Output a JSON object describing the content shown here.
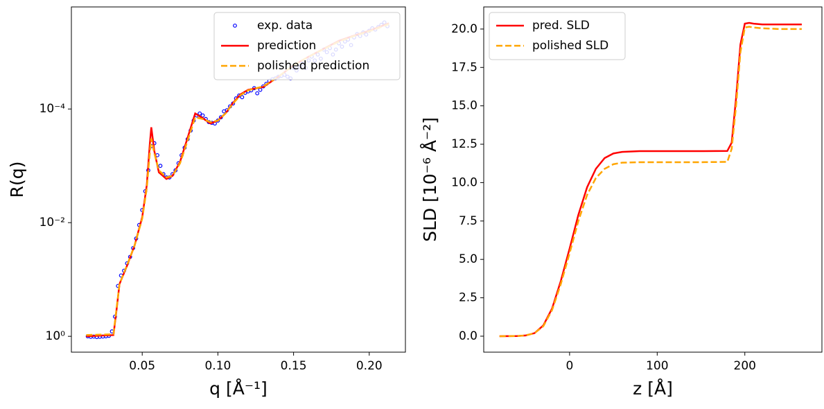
{
  "chart_data": [
    {
      "type": "line",
      "ylog": true,
      "legend": "upper right",
      "ylabel": "R(q)",
      "xlabel": "q [Å⁻¹]",
      "xlim": [
        0.0032,
        0.2239
      ],
      "ylim": [
        1.9,
        1.6e-06
      ],
      "xticks": [
        0.05,
        {
          "value": 0.1,
          "label": "0.10"
        },
        0.15,
        {
          "value": 0.2,
          "label": "0.20"
        }
      ],
      "yticks": [
        {
          "value": 1,
          "label": "10⁰"
        },
        {
          "value": 0.01,
          "label": "10⁻²"
        },
        {
          "value": 0.0001,
          "label": "10⁻⁴"
        }
      ],
      "series": [
        {
          "name": "exp. data",
          "type": "scatter",
          "color": "#0000ff",
          "x": [
            0.014,
            0.016,
            0.018,
            0.02,
            0.022,
            0.024,
            0.026,
            0.028,
            0.03,
            0.032,
            0.034,
            0.036,
            0.038,
            0.04,
            0.042,
            0.044,
            0.046,
            0.048,
            0.05,
            0.052,
            0.054,
            0.056,
            0.058,
            0.06,
            0.062,
            0.064,
            0.066,
            0.068,
            0.07,
            0.072,
            0.074,
            0.076,
            0.078,
            0.08,
            0.082,
            0.084,
            0.086,
            0.088,
            0.09,
            0.092,
            0.094,
            0.096,
            0.098,
            0.1,
            0.102,
            0.104,
            0.106,
            0.108,
            0.11,
            0.112,
            0.114,
            0.116,
            0.118,
            0.12,
            0.122,
            0.124,
            0.126,
            0.128,
            0.13,
            0.132,
            0.134,
            0.136,
            0.138,
            0.14,
            0.142,
            0.144,
            0.146,
            0.148,
            0.15,
            0.152,
            0.154,
            0.156,
            0.158,
            0.16,
            0.162,
            0.164,
            0.166,
            0.168,
            0.17,
            0.172,
            0.174,
            0.176,
            0.178,
            0.18,
            0.182,
            0.184,
            0.186,
            0.188,
            0.19,
            0.192,
            0.194,
            0.196,
            0.198,
            0.2,
            0.202,
            0.204,
            0.206,
            0.208,
            0.21,
            0.212
          ],
          "values": [
            1.0,
            1.02,
            1.01,
            1.03,
            1.02,
            1.01,
            1.0,
            0.98,
            0.82,
            0.45,
            0.13,
            0.085,
            0.07,
            0.052,
            0.04,
            0.028,
            0.019,
            0.011,
            0.006,
            0.0028,
            0.0012,
            0.00045,
            0.0004,
            0.00065,
            0.001,
            0.0014,
            0.0016,
            0.0016,
            0.0014,
            0.0012,
            0.0009,
            0.00065,
            0.00048,
            0.00034,
            0.00024,
            0.00016,
            0.00013,
            0.00012,
            0.00013,
            0.00015,
            0.00017,
            0.000175,
            0.00018,
            0.00016,
            0.00014,
            0.00011,
            0.000105,
            9e-05,
            8e-05,
            6.5e-05,
            5.8e-05,
            6.2e-05,
            5.2e-05,
            4.9e-05,
            4.7e-05,
            4.3e-05,
            5.3e-05,
            4.6e-05,
            4e-05,
            3.6e-05,
            3.2e-05,
            3e-05,
            2.9e-05,
            2.7e-05,
            2.6e-05,
            2.5e-05,
            2.7e-05,
            2.9e-05,
            1.9e-05,
            2.1e-05,
            1.8e-05,
            1.6e-05,
            1.9e-05,
            1.4e-05,
            1.2e-05,
            1.4e-05,
            1.1e-05,
            1.3e-05,
            9e-06,
            1e-05,
            8.5e-06,
            1.1e-05,
            9e-06,
            7e-06,
            8e-06,
            6.5e-06,
            6e-06,
            7.5e-06,
            5.5e-06,
            4.8e-06,
            5.2e-06,
            4.5e-06,
            4.9e-06,
            4.2e-06,
            3.8e-06,
            4e-06,
            3.6e-06,
            3.3e-06,
            3e-06,
            3.5e-06
          ]
        },
        {
          "name": "prediction",
          "type": "line",
          "color": "#ff0000",
          "x": [
            0.013,
            0.031,
            0.033,
            0.035,
            0.04,
            0.045,
            0.05,
            0.053,
            0.055,
            0.056,
            0.058,
            0.061,
            0.066,
            0.07,
            0.075,
            0.08,
            0.085,
            0.09,
            0.095,
            0.1,
            0.105,
            0.11,
            0.115,
            0.12,
            0.13,
            0.14,
            0.15,
            0.16,
            0.17,
            0.18,
            0.19,
            0.2,
            0.213
          ],
          "values": [
            1.0,
            0.95,
            0.35,
            0.12,
            0.057,
            0.025,
            0.008,
            0.0022,
            0.00042,
            0.00021,
            0.00055,
            0.0013,
            0.0017,
            0.0015,
            0.00085,
            0.00032,
            0.00012,
            0.000145,
            0.00018,
            0.00016,
            0.00012,
            7.8e-05,
            5.5e-05,
            4.6e-05,
            4.1e-05,
            2.7e-05,
            1.7e-05,
            1.2e-05,
            8.7e-06,
            6.3e-06,
            5.1e-06,
            4.2e-06,
            3.1e-06
          ]
        },
        {
          "name": "polished prediction",
          "type": "line",
          "dash": true,
          "color": "#ffa500",
          "x": [
            0.013,
            0.031,
            0.033,
            0.035,
            0.04,
            0.045,
            0.05,
            0.053,
            0.055,
            0.056,
            0.058,
            0.061,
            0.066,
            0.07,
            0.075,
            0.08,
            0.085,
            0.09,
            0.095,
            0.1,
            0.105,
            0.11,
            0.115,
            0.12,
            0.13,
            0.14,
            0.15,
            0.16,
            0.17,
            0.18,
            0.19,
            0.2,
            0.213
          ],
          "values": [
            0.95,
            0.92,
            0.33,
            0.12,
            0.056,
            0.025,
            0.0085,
            0.0025,
            0.0006,
            0.00033,
            0.0006,
            0.0012,
            0.0016,
            0.0015,
            0.0009,
            0.00036,
            0.00014,
            0.00015,
            0.00017,
            0.00016,
            0.00012,
            8e-05,
            5.7e-05,
            4.7e-05,
            4e-05,
            2.7e-05,
            1.7e-05,
            1.2e-05,
            8.8e-06,
            6.5e-06,
            5.2e-06,
            4.3e-06,
            3.2e-06
          ]
        }
      ]
    },
    {
      "type": "line",
      "legend": "upper left",
      "ylabel": "SLD [10⁻⁶ Å⁻²]",
      "xlabel": "z [Å]",
      "xlim": [
        -98,
        288
      ],
      "ylim": [
        -1.04,
        21.44
      ],
      "xticks": [
        0,
        100,
        200
      ],
      "yticks": [
        {
          "value": 0,
          "label": "0.0"
        },
        2.5,
        {
          "value": 5,
          "label": "5.0"
        },
        7.5,
        {
          "value": 10,
          "label": "10.0"
        },
        12.5,
        {
          "value": 15,
          "label": "15.0"
        },
        17.5,
        {
          "value": 20,
          "label": "20.0"
        }
      ],
      "series": [
        {
          "name": "pred. SLD",
          "type": "line",
          "color": "#ff0000",
          "x": [
            -80,
            -60,
            -50,
            -40,
            -30,
            -20,
            -10,
            0,
            10,
            20,
            30,
            40,
            50,
            60,
            80,
            100,
            150,
            180,
            185,
            190,
            195,
            200,
            205,
            210,
            220,
            240,
            265
          ],
          "values": [
            0,
            0.01,
            0.05,
            0.2,
            0.7,
            1.8,
            3.6,
            5.7,
            7.9,
            9.7,
            10.9,
            11.6,
            11.9,
            12.0,
            12.05,
            12.05,
            12.05,
            12.06,
            12.6,
            15.5,
            19.0,
            20.35,
            20.4,
            20.35,
            20.3,
            20.3,
            20.3
          ]
        },
        {
          "name": "polished SLD",
          "type": "line",
          "dash": true,
          "color": "#ffa500",
          "x": [
            -80,
            -60,
            -50,
            -40,
            -30,
            -20,
            -10,
            0,
            10,
            20,
            30,
            40,
            50,
            60,
            80,
            100,
            150,
            180,
            185,
            190,
            195,
            200,
            205,
            210,
            220,
            240,
            265
          ],
          "values": [
            0,
            0.01,
            0.05,
            0.2,
            0.65,
            1.7,
            3.4,
            5.4,
            7.5,
            9.2,
            10.3,
            10.9,
            11.2,
            11.3,
            11.33,
            11.33,
            11.33,
            11.35,
            12.2,
            15.0,
            18.5,
            20.1,
            20.15,
            20.1,
            20.05,
            20.0,
            20.0
          ]
        }
      ]
    }
  ]
}
